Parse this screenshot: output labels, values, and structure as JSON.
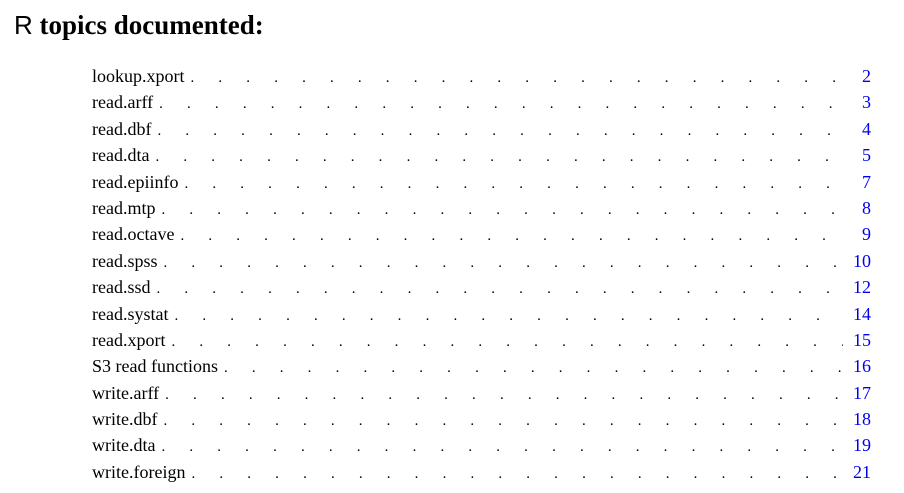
{
  "heading": {
    "r_mark": "R",
    "title": "topics documented:"
  },
  "leader": ". . . . . . . . . . . . . . . . . . . . . . . . . . . . . . . . . . . . . . . . . . . . . . . . . . . . . . . . . . . . . . . . . . . . . . . . . . . . . . . . .",
  "toc": [
    {
      "name": "lookup.xport",
      "page": "2"
    },
    {
      "name": "read.arff",
      "page": "3"
    },
    {
      "name": "read.dbf",
      "page": "4"
    },
    {
      "name": "read.dta",
      "page": "5"
    },
    {
      "name": "read.epiinfo",
      "page": "7"
    },
    {
      "name": "read.mtp",
      "page": "8"
    },
    {
      "name": "read.octave",
      "page": "9"
    },
    {
      "name": "read.spss",
      "page": "10"
    },
    {
      "name": "read.ssd",
      "page": "12"
    },
    {
      "name": "read.systat",
      "page": "14"
    },
    {
      "name": "read.xport",
      "page": "15"
    },
    {
      "name": "S3 read functions",
      "page": "16"
    },
    {
      "name": "write.arff",
      "page": "17"
    },
    {
      "name": "write.dbf",
      "page": "18"
    },
    {
      "name": "write.dta",
      "page": "19"
    },
    {
      "name": "write.foreign",
      "page": "21"
    }
  ],
  "colors": {
    "text": "#000000",
    "link": "#0000ee",
    "background": "#ffffff"
  }
}
